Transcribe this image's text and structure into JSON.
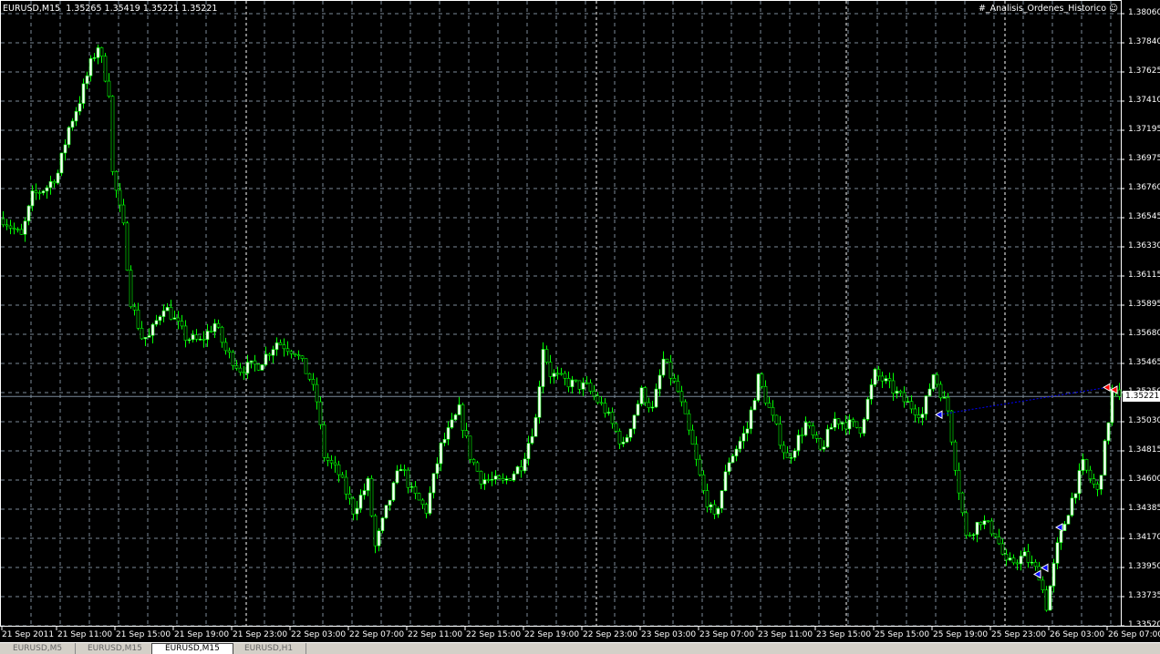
{
  "header": {
    "symbol": "EURUSD,M15",
    "ohlc": "1.35265 1.35419 1.35221 1.35221"
  },
  "indicator": {
    "name": "#_Analisis_Ordenes_Historico",
    "icon": "smiley-icon"
  },
  "tabs": [
    {
      "label": "EURUSD,M5",
      "active": false
    },
    {
      "label": "EURUSD,M15",
      "active": false
    },
    {
      "label": "EURUSD,M15",
      "active": true
    },
    {
      "label": "EURUSD,H1",
      "active": false
    }
  ],
  "chart_data": {
    "type": "candlestick",
    "ylim": [
      1.3352,
      1.3806
    ],
    "price_ticks": [
      "1.38060",
      "1.37840",
      "1.37625",
      "1.37410",
      "1.37195",
      "1.36975",
      "1.36760",
      "1.36545",
      "1.36330",
      "1.36115",
      "1.35895",
      "1.35680",
      "1.35465",
      "1.35250",
      "1.35030",
      "1.34815",
      "1.34600",
      "1.34385",
      "1.34170",
      "1.33950",
      "1.33735",
      "1.33520"
    ],
    "current_price": "1.35221",
    "time_ticks": [
      "21 Sep 2011",
      "21 Sep 11:00",
      "21 Sep 15:00",
      "21 Sep 19:00",
      "21 Sep 23:00",
      "22 Sep 03:00",
      "22 Sep 07:00",
      "22 Sep 11:00",
      "22 Sep 15:00",
      "22 Sep 19:00",
      "22 Sep 23:00",
      "23 Sep 03:00",
      "23 Sep 07:00",
      "23 Sep 11:00",
      "23 Sep 15:00",
      "25 Sep 15:00",
      "25 Sep 19:00",
      "25 Sep 23:00",
      "26 Sep 03:00",
      "26 Sep 07:00"
    ],
    "close_path": [
      [
        0,
        1.36539
      ],
      [
        5,
        1.36404
      ],
      [
        8,
        1.36708
      ],
      [
        12,
        1.36776
      ],
      [
        15,
        1.36877
      ],
      [
        18,
        1.37215
      ],
      [
        21,
        1.37418
      ],
      [
        24,
        1.37688
      ],
      [
        26,
        1.37823
      ],
      [
        29,
        1.37485
      ],
      [
        30,
        1.36877
      ],
      [
        33,
        1.36471
      ],
      [
        35,
        1.35931
      ],
      [
        38,
        1.3566
      ],
      [
        40,
        1.3566
      ],
      [
        44,
        1.35897
      ],
      [
        46,
        1.35829
      ],
      [
        50,
        1.3566
      ],
      [
        54,
        1.35626
      ],
      [
        58,
        1.35762
      ],
      [
        61,
        1.35559
      ],
      [
        65,
        1.35424
      ],
      [
        70,
        1.35457
      ],
      [
        75,
        1.35626
      ],
      [
        80,
        1.35559
      ],
      [
        84,
        1.35356
      ],
      [
        86,
        1.35187
      ],
      [
        88,
        1.34781
      ],
      [
        92,
        1.34646
      ],
      [
        96,
        1.34376
      ],
      [
        100,
        1.34579
      ],
      [
        102,
        1.34105
      ],
      [
        105,
        1.34376
      ],
      [
        109,
        1.34714
      ],
      [
        112,
        1.34511
      ],
      [
        116,
        1.34376
      ],
      [
        120,
        1.34849
      ],
      [
        125,
        1.35119
      ],
      [
        128,
        1.34781
      ],
      [
        131,
        1.34612
      ],
      [
        137,
        1.34579
      ],
      [
        142,
        1.34714
      ],
      [
        146,
        1.35052
      ],
      [
        148,
        1.35593
      ],
      [
        150,
        1.3539
      ],
      [
        155,
        1.35322
      ],
      [
        160,
        1.35288
      ],
      [
        165,
        1.35119
      ],
      [
        170,
        1.34849
      ],
      [
        175,
        1.35255
      ],
      [
        178,
        1.35119
      ],
      [
        181,
        1.35491
      ],
      [
        185,
        1.35255
      ],
      [
        189,
        1.34849
      ],
      [
        192,
        1.34511
      ],
      [
        195,
        1.34308
      ],
      [
        199,
        1.34748
      ],
      [
        204,
        1.34984
      ],
      [
        207,
        1.35356
      ],
      [
        211,
        1.35052
      ],
      [
        215,
        1.34748
      ],
      [
        220,
        1.35018
      ],
      [
        224,
        1.34815
      ],
      [
        228,
        1.35052
      ],
      [
        235,
        1.34984
      ],
      [
        239,
        1.3539
      ],
      [
        242,
        1.35322
      ],
      [
        247,
        1.35187
      ],
      [
        252,
        1.35086
      ],
      [
        255,
        1.3539
      ],
      [
        259,
        1.35119
      ],
      [
        261,
        1.34714
      ],
      [
        264,
        1.34173
      ],
      [
        268,
        1.34308
      ],
      [
        272,
        1.34207
      ],
      [
        275,
        1.3397
      ],
      [
        280,
        1.34038
      ],
      [
        284,
        1.33902
      ],
      [
        286,
        1.33666
      ],
      [
        289,
        1.34105
      ],
      [
        292,
        1.34376
      ],
      [
        296,
        1.34714
      ],
      [
        300,
        1.34511
      ],
      [
        302,
        1.34849
      ],
      [
        304,
        1.35255
      ],
      [
        306,
        1.35221
      ]
    ],
    "trade_line": {
      "from": [
        257,
        1.35086
      ],
      "to": [
        303,
        1.35288
      ],
      "color": "#0000ff"
    },
    "markers": [
      {
        "bar": 257,
        "price": 1.35086,
        "color": "#0000ff"
      },
      {
        "bar": 284,
        "price": 1.33902,
        "color": "#0000ff"
      },
      {
        "bar": 286,
        "price": 1.3395,
        "color": "#0000ff"
      },
      {
        "bar": 290,
        "price": 1.3425,
        "color": "#0000ff"
      },
      {
        "bar": 303,
        "price": 1.35288,
        "color": "#ff0000"
      },
      {
        "bar": 305,
        "price": 1.3527,
        "color": "#ff0000"
      }
    ],
    "colors": {
      "background": "#000000",
      "grid": "#7b8a99",
      "bar": "#00ff00",
      "bull_body": "#ffffff",
      "bear_body": "#000000",
      "current_line": "#7b8a99"
    }
  }
}
